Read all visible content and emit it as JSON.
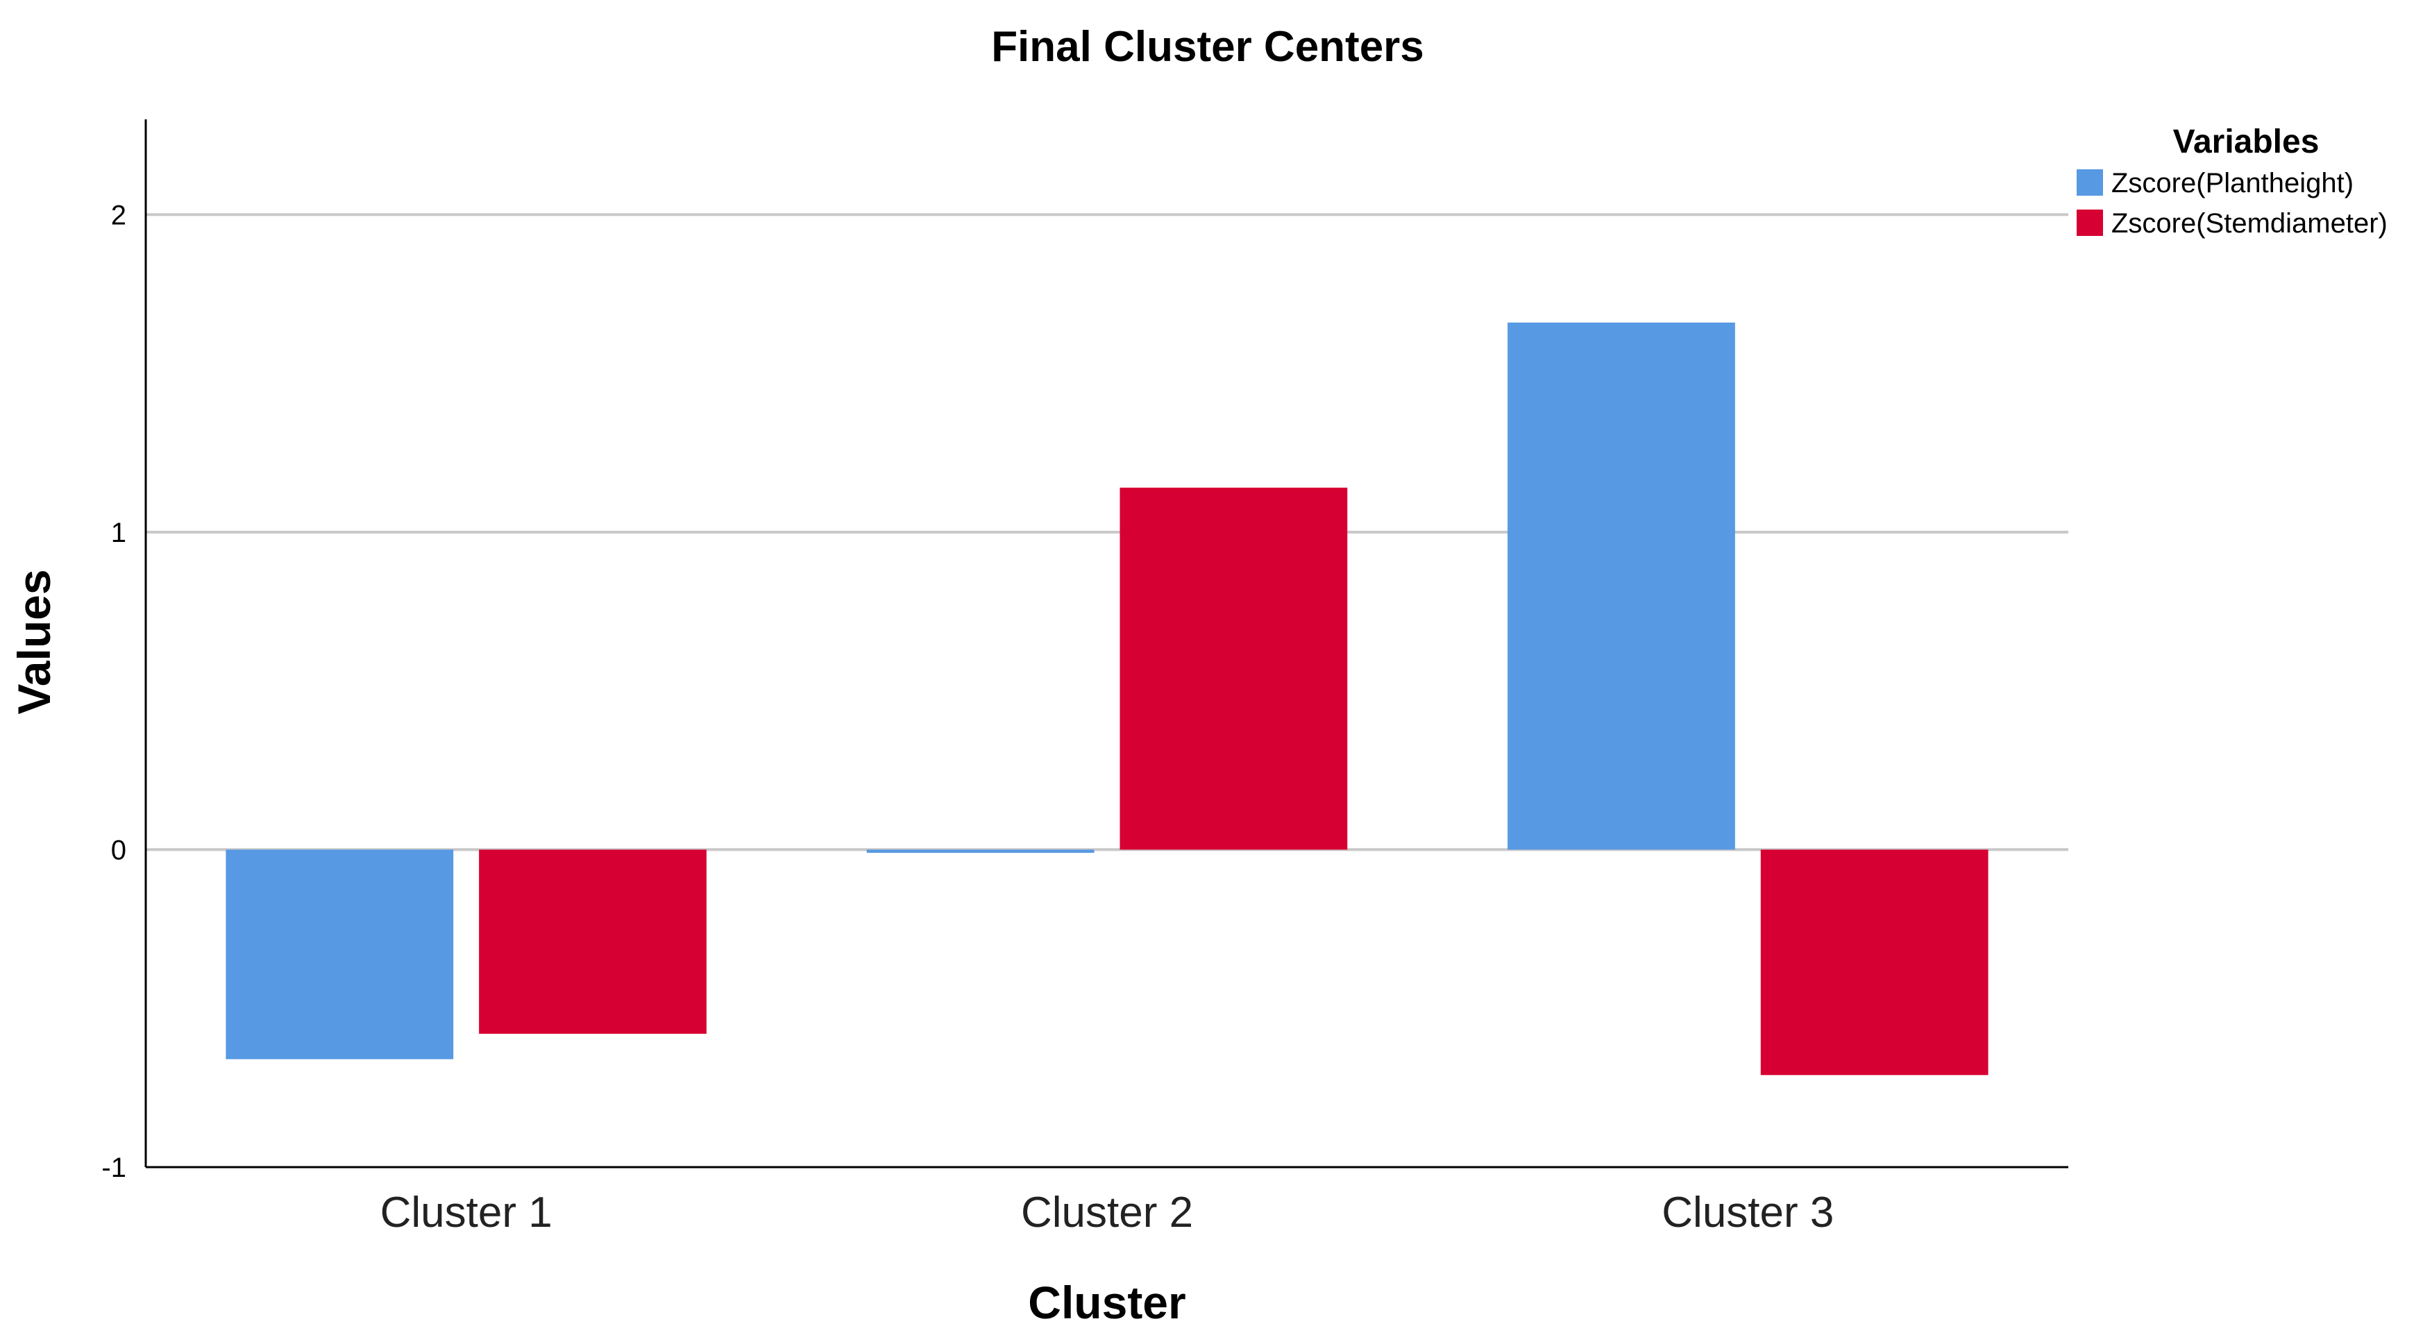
{
  "chart_data": {
    "type": "bar",
    "title": "Final Cluster Centers",
    "xlabel": "Cluster",
    "ylabel": "Values",
    "categories": [
      "Cluster 1",
      "Cluster 2",
      "Cluster 3"
    ],
    "series": [
      {
        "name": "Zscore(Plantheight)",
        "color": "#5799e3",
        "values": [
          -0.66,
          -0.01,
          1.66
        ]
      },
      {
        "name": "Zscore(Stemdiameter)",
        "color": "#d70032",
        "values": [
          -0.58,
          1.14,
          -0.71
        ]
      }
    ],
    "ylim": [
      -1,
      2.3
    ],
    "yticks": [
      -1,
      0,
      1,
      2
    ],
    "grid": true,
    "legend": {
      "title": "Variables",
      "placement": "top-right"
    }
  }
}
